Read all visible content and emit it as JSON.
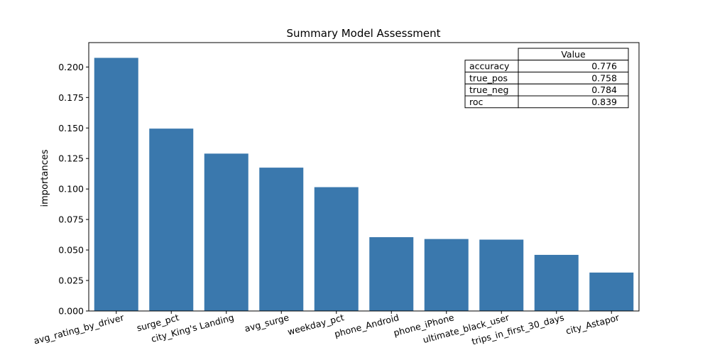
{
  "chart_data": {
    "type": "bar",
    "title": "Summary Model Assessment",
    "xlabel": "",
    "ylabel": "importances",
    "ylim": [
      0,
      0.22
    ],
    "yticks": [
      0.0,
      0.025,
      0.05,
      0.075,
      0.1,
      0.125,
      0.15,
      0.175,
      0.2
    ],
    "ytick_labels": [
      "0.000",
      "0.025",
      "0.050",
      "0.075",
      "0.100",
      "0.125",
      "0.150",
      "0.175",
      "0.200"
    ],
    "categories": [
      "avg_rating_by_driver",
      "surge_pct",
      "city_King's Landing",
      "avg_surge",
      "weekday_pct",
      "phone_Android",
      "phone_iPhone",
      "ultimate_black_user",
      "trips_in_first_30_days",
      "city_Astapor"
    ],
    "values": [
      0.2075,
      0.1495,
      0.129,
      0.1175,
      0.1015,
      0.0605,
      0.059,
      0.0585,
      0.046,
      0.0315
    ],
    "bar_color": "#3a78ad",
    "grid": false,
    "table": {
      "column_header": "Value",
      "rows": [
        {
          "label": "accuracy",
          "value": "0.776"
        },
        {
          "label": "true_pos",
          "value": "0.758"
        },
        {
          "label": "true_neg",
          "value": "0.784"
        },
        {
          "label": "roc",
          "value": "0.839"
        }
      ]
    }
  }
}
